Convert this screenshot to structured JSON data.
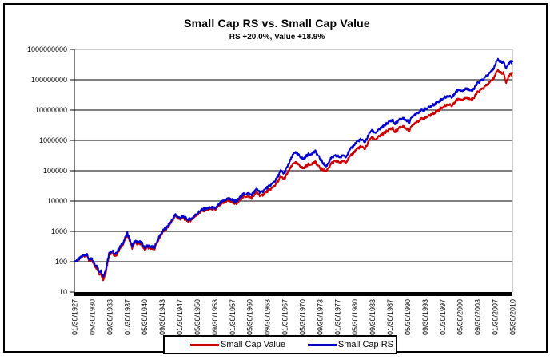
{
  "header": {
    "title": "Small Cap RS vs. Small Cap Value",
    "subtitle": "RS +20.0%, Value +18.9%"
  },
  "legend": {
    "entries": [
      {
        "label": "Small Cap Value",
        "color": "#cc0000"
      },
      {
        "label": "Small Cap RS",
        "color": "#0000cc"
      }
    ]
  },
  "chart_data": {
    "type": "line",
    "title": "Small Cap RS vs. Small Cap Value",
    "subtitle": "RS +20.0%, Value +18.9%",
    "y_scale": "log",
    "ylim": [
      10,
      1000000000
    ],
    "y_ticks": [
      10,
      100,
      1000,
      10000,
      100000,
      1000000,
      10000000,
      100000000,
      1000000000
    ],
    "grid": "horizontal",
    "legend_position": "bottom",
    "x_start_year": 1927.083,
    "x_end_year": 2010.417,
    "x_tick_interval_months": 40,
    "x_tick_labels": [
      "01/30/1927",
      "05/30/1930",
      "09/30/1933",
      "01/30/1937",
      "05/30/1940",
      "09/30/1943",
      "01/30/1947",
      "05/30/1950",
      "09/30/1953",
      "01/30/1957",
      "05/30/1960",
      "09/30/1963",
      "01/30/1967",
      "05/30/1970",
      "09/30/1973",
      "01/30/1977",
      "05/30/1980",
      "09/30/1983",
      "01/30/1987",
      "05/30/1990",
      "09/30/1993",
      "01/30/1997",
      "05/30/2000",
      "09/30/2003",
      "01/30/2007",
      "05/30/2010"
    ],
    "axis_color": "#000000",
    "plot_border_color": "#999999",
    "series": [
      {
        "name": "Small Cap Value",
        "color": "#cc0000",
        "points": [
          [
            1927.08,
            100
          ],
          [
            1927.6,
            110
          ],
          [
            1928.1,
            124
          ],
          [
            1928.7,
            150
          ],
          [
            1929.4,
            168
          ],
          [
            1929.75,
            125
          ],
          [
            1929.95,
            100
          ],
          [
            1930.3,
            118
          ],
          [
            1930.9,
            78
          ],
          [
            1931.4,
            58
          ],
          [
            1931.8,
            38
          ],
          [
            1932.1,
            43
          ],
          [
            1932.6,
            25
          ],
          [
            1933.05,
            45
          ],
          [
            1933.7,
            175
          ],
          [
            1934.3,
            205
          ],
          [
            1934.85,
            142
          ],
          [
            1935.5,
            230
          ],
          [
            1936.3,
            380
          ],
          [
            1937.2,
            800
          ],
          [
            1938.05,
            285
          ],
          [
            1938.6,
            430
          ],
          [
            1939.3,
            375
          ],
          [
            1939.75,
            420
          ],
          [
            1940.4,
            252
          ],
          [
            1941.0,
            300
          ],
          [
            1941.9,
            268
          ],
          [
            1942.35,
            278
          ],
          [
            1943.0,
            500
          ],
          [
            1943.9,
            960
          ],
          [
            1944.6,
            1200
          ],
          [
            1945.3,
            1750
          ],
          [
            1946.3,
            3300
          ],
          [
            1947.0,
            2520
          ],
          [
            1947.8,
            2760
          ],
          [
            1948.7,
            2200
          ],
          [
            1949.4,
            2400
          ],
          [
            1950.4,
            3550
          ],
          [
            1951.2,
            4550
          ],
          [
            1952.0,
            5100
          ],
          [
            1953.0,
            5500
          ],
          [
            1953.9,
            5100
          ],
          [
            1955.0,
            7900
          ],
          [
            1956.2,
            10300
          ],
          [
            1957.1,
            9400
          ],
          [
            1957.95,
            8000
          ],
          [
            1959.0,
            13200
          ],
          [
            1959.9,
            14500
          ],
          [
            1960.8,
            12700
          ],
          [
            1961.8,
            19500
          ],
          [
            1962.55,
            14200
          ],
          [
            1963.6,
            20000
          ],
          [
            1964.5,
            25000
          ],
          [
            1965.5,
            37000
          ],
          [
            1966.35,
            65000
          ],
          [
            1966.95,
            52000
          ],
          [
            1967.8,
            95000
          ],
          [
            1968.95,
            195000
          ],
          [
            1970.0,
            145000
          ],
          [
            1970.6,
            118000
          ],
          [
            1971.4,
            155000
          ],
          [
            1972.0,
            168000
          ],
          [
            1972.95,
            190000
          ],
          [
            1973.8,
            122000
          ],
          [
            1974.95,
            96000
          ],
          [
            1975.9,
            170000
          ],
          [
            1976.8,
            205000
          ],
          [
            1977.8,
            188000
          ],
          [
            1978.2,
            215000
          ],
          [
            1978.75,
            196000
          ],
          [
            1979.8,
            330000
          ],
          [
            1980.9,
            540000
          ],
          [
            1981.5,
            610000
          ],
          [
            1982.4,
            540000
          ],
          [
            1983.5,
            1250000
          ],
          [
            1984.4,
            1080000
          ],
          [
            1985.5,
            1520000
          ],
          [
            1986.5,
            2000000
          ],
          [
            1987.65,
            2600000
          ],
          [
            1987.95,
            1850000
          ],
          [
            1989.0,
            2650000
          ],
          [
            1989.6,
            2900000
          ],
          [
            1990.8,
            2100000
          ],
          [
            1991.5,
            3400000
          ],
          [
            1992.8,
            4800000
          ],
          [
            1994.0,
            5700000
          ],
          [
            1995.0,
            7100000
          ],
          [
            1996.3,
            9800000
          ],
          [
            1997.5,
            13800000
          ],
          [
            1998.55,
            15800000
          ],
          [
            1998.85,
            13200000
          ],
          [
            1999.5,
            19500000
          ],
          [
            2000.2,
            24000000
          ],
          [
            2001.0,
            22500000
          ],
          [
            2001.8,
            26500000
          ],
          [
            2002.75,
            21500000
          ],
          [
            2003.8,
            39000000
          ],
          [
            2004.9,
            54000000
          ],
          [
            2005.8,
            72000000
          ],
          [
            2006.8,
            110000000
          ],
          [
            2007.6,
            215000000
          ],
          [
            2008.2,
            165000000
          ],
          [
            2008.65,
            175000000
          ],
          [
            2009.2,
            80000000
          ],
          [
            2009.8,
            140000000
          ],
          [
            2010.1,
            170000000
          ],
          [
            2010.28,
            148000000
          ],
          [
            2010.42,
            180000000
          ]
        ]
      },
      {
        "name": "Small Cap RS",
        "color": "#0000cc",
        "points": [
          [
            1927.08,
            100
          ],
          [
            1927.6,
            112
          ],
          [
            1928.1,
            128
          ],
          [
            1928.7,
            158
          ],
          [
            1929.4,
            180
          ],
          [
            1929.75,
            135
          ],
          [
            1929.95,
            110
          ],
          [
            1930.3,
            128
          ],
          [
            1930.9,
            88
          ],
          [
            1931.4,
            68
          ],
          [
            1931.8,
            46
          ],
          [
            1932.1,
            52
          ],
          [
            1932.6,
            33
          ],
          [
            1933.05,
            55
          ],
          [
            1933.7,
            200
          ],
          [
            1934.3,
            230
          ],
          [
            1934.85,
            165
          ],
          [
            1935.5,
            260
          ],
          [
            1936.3,
            420
          ],
          [
            1937.2,
            880
          ],
          [
            1938.05,
            330
          ],
          [
            1938.6,
            480
          ],
          [
            1939.3,
            420
          ],
          [
            1939.75,
            470
          ],
          [
            1940.4,
            290
          ],
          [
            1941.0,
            340
          ],
          [
            1941.9,
            300
          ],
          [
            1942.35,
            310
          ],
          [
            1943.0,
            550
          ],
          [
            1943.9,
            1050
          ],
          [
            1944.6,
            1300
          ],
          [
            1945.3,
            1900
          ],
          [
            1946.3,
            3600
          ],
          [
            1947.0,
            2800
          ],
          [
            1947.8,
            3050
          ],
          [
            1948.7,
            2450
          ],
          [
            1949.4,
            2650
          ],
          [
            1950.4,
            3900
          ],
          [
            1951.2,
            5000
          ],
          [
            1952.0,
            5600
          ],
          [
            1953.0,
            6100
          ],
          [
            1953.9,
            5700
          ],
          [
            1955.0,
            9000
          ],
          [
            1956.2,
            12000
          ],
          [
            1957.1,
            11000
          ],
          [
            1957.95,
            9500
          ],
          [
            1959.0,
            16000
          ],
          [
            1959.9,
            18000
          ],
          [
            1960.8,
            16000
          ],
          [
            1961.8,
            25000
          ],
          [
            1962.55,
            18500
          ],
          [
            1963.6,
            26500
          ],
          [
            1964.5,
            34000
          ],
          [
            1965.5,
            52000
          ],
          [
            1966.35,
            100000
          ],
          [
            1966.95,
            80000
          ],
          [
            1967.8,
            160000
          ],
          [
            1968.95,
            420000
          ],
          [
            1970.0,
            300000
          ],
          [
            1970.6,
            240000
          ],
          [
            1971.4,
            330000
          ],
          [
            1972.0,
            360000
          ],
          [
            1972.95,
            430000
          ],
          [
            1973.8,
            250000
          ],
          [
            1974.95,
            135000
          ],
          [
            1975.9,
            260000
          ],
          [
            1976.8,
            310000
          ],
          [
            1977.8,
            280000
          ],
          [
            1978.2,
            330000
          ],
          [
            1978.75,
            300000
          ],
          [
            1979.8,
            560000
          ],
          [
            1980.9,
            950000
          ],
          [
            1981.5,
            1050000
          ],
          [
            1982.4,
            900000
          ],
          [
            1983.5,
            2100000
          ],
          [
            1984.4,
            1800000
          ],
          [
            1985.5,
            2600000
          ],
          [
            1986.5,
            3600000
          ],
          [
            1987.65,
            4800000
          ],
          [
            1987.95,
            3400000
          ],
          [
            1989.0,
            4900000
          ],
          [
            1989.6,
            5400000
          ],
          [
            1990.8,
            4000000
          ],
          [
            1991.5,
            6600000
          ],
          [
            1992.8,
            9200000
          ],
          [
            1994.0,
            10800000
          ],
          [
            1995.0,
            13500000
          ],
          [
            1996.3,
            19000000
          ],
          [
            1997.5,
            26000000
          ],
          [
            1998.55,
            30000000
          ],
          [
            1998.85,
            25000000
          ],
          [
            1999.5,
            38000000
          ],
          [
            2000.2,
            48000000
          ],
          [
            2001.0,
            44000000
          ],
          [
            2001.8,
            52000000
          ],
          [
            2002.75,
            42000000
          ],
          [
            2003.8,
            78000000
          ],
          [
            2004.9,
            105000000
          ],
          [
            2005.8,
            145000000
          ],
          [
            2006.8,
            230000000
          ],
          [
            2007.6,
            480000000
          ],
          [
            2008.2,
            380000000
          ],
          [
            2008.65,
            400000000
          ],
          [
            2009.2,
            240000000
          ],
          [
            2009.8,
            360000000
          ],
          [
            2010.1,
            430000000
          ],
          [
            2010.28,
            370000000
          ],
          [
            2010.42,
            430000000
          ]
        ]
      }
    ]
  }
}
